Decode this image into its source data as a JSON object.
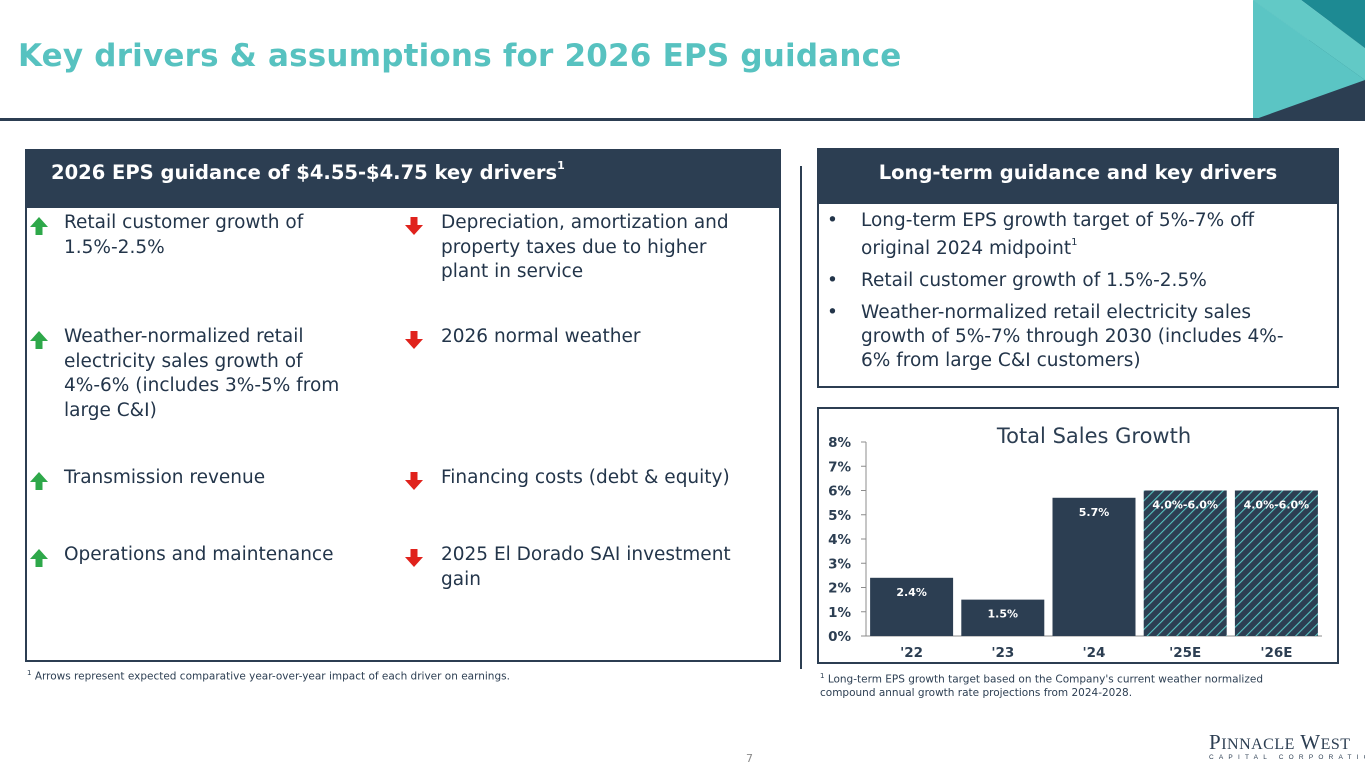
{
  "page": {
    "title": "Key drivers & assumptions for 2026 EPS guidance",
    "page_number": "7"
  },
  "brand_colors": {
    "navy": "#2c3e52",
    "teal": "#57c2c0",
    "up_arrow": "#2ea84a",
    "down_arrow": "#e0221c"
  },
  "left_panel": {
    "header": "2026 EPS guidance of $4.55-$4.75 key drivers",
    "header_sup": "1",
    "positive_drivers": [
      {
        "icon": "green-up-arrow-icon",
        "lines": [
          "Retail customer growth of",
          "1.5%-2.5%"
        ]
      },
      {
        "icon": "green-up-arrow-icon",
        "lines": [
          "Weather-normalized retail",
          "electricity sales growth of",
          "4%-6% (includes 3%-5% from",
          "large C&I)"
        ]
      },
      {
        "icon": "green-up-arrow-icon",
        "lines": [
          "Transmission revenue"
        ]
      },
      {
        "icon": "green-up-arrow-icon",
        "lines": [
          "Operations and maintenance"
        ]
      }
    ],
    "negative_drivers": [
      {
        "icon": "red-down-arrow-icon",
        "lines": [
          "Depreciation, amortization and",
          "property taxes due to higher",
          "plant in service"
        ]
      },
      {
        "icon": "red-down-arrow-icon",
        "lines": [
          "2026 normal weather"
        ]
      },
      {
        "icon": "red-down-arrow-icon",
        "lines": [
          "Financing costs (debt & equity)"
        ]
      },
      {
        "icon": "red-down-arrow-icon",
        "lines": [
          "2025 El Dorado SAI investment",
          "gain"
        ]
      }
    ],
    "footnote_sup": "1",
    "footnote": "Arrows represent expected comparative year-over-year impact of each driver on earnings."
  },
  "right_panel": {
    "header": "Long-term guidance and key drivers",
    "bullet_char": "•",
    "bullets": [
      {
        "lines": [
          "Long-term EPS growth target of 5%-7% off",
          "original 2024 midpoint"
        ],
        "sup": "1"
      },
      {
        "lines": [
          "Retail customer growth of 1.5%-2.5%"
        ],
        "sup": ""
      },
      {
        "lines": [
          "Weather-normalized retail electricity sales",
          "growth of 5%-7% through 2030 (includes 4%-",
          "6% from large C&I customers)"
        ],
        "sup": ""
      }
    ],
    "footnote_sup": "1",
    "footnote_lines": [
      "Long-term EPS growth target based on the Company's current weather normalized",
      "compound annual growth rate projections from 2024-2028."
    ]
  },
  "chart_data": {
    "type": "bar",
    "title": "Total Sales Growth",
    "categories": [
      "'22",
      "'23",
      "'24",
      "'25E",
      "'26E"
    ],
    "values": [
      2.4,
      1.5,
      5.7,
      6.0,
      6.0
    ],
    "ranges": [
      null,
      null,
      null,
      [
        4.0,
        6.0
      ],
      [
        4.0,
        6.0
      ]
    ],
    "estimate": [
      false,
      false,
      false,
      true,
      true
    ],
    "data_labels": [
      "2.4%",
      "1.5%",
      "5.7%",
      "4.0%-6.0%",
      "4.0%-6.0%"
    ],
    "y_ticks": [
      "0%",
      "1%",
      "2%",
      "3%",
      "4%",
      "5%",
      "6%",
      "7%",
      "8%"
    ],
    "ylim": [
      0,
      8
    ],
    "xlabel": "",
    "ylabel": "",
    "grid": false,
    "legend": "none",
    "bar_color": "#2c3e52",
    "hatch_color": "#57c2c0"
  },
  "logo": {
    "name": "PINNACLE WEST",
    "sub": "CAPITAL CORPORATION"
  }
}
